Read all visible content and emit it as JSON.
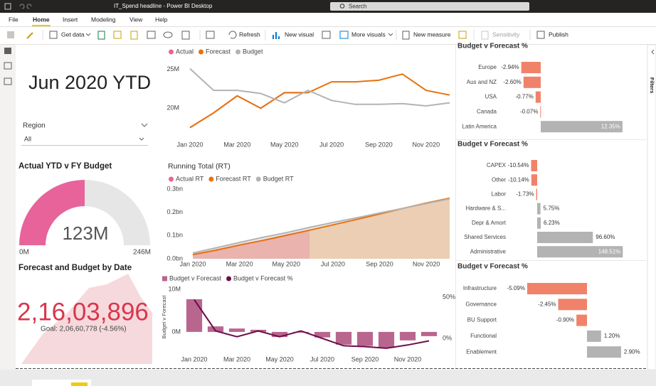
{
  "window": {
    "title": "IT_Spend headline - Power BI Desktop",
    "search": "Search"
  },
  "menu": [
    "File",
    "Home",
    "Insert",
    "Modeling",
    "View",
    "Help"
  ],
  "ribbon": [
    "Get data",
    "Refresh",
    "New visual",
    "More visuals",
    "New measure",
    "Sensitivity",
    "Publish"
  ],
  "filters_pane": "Filters",
  "report": {
    "heading": "Jun 2020 YTD",
    "slicer": {
      "label": "Region",
      "value": "All"
    }
  },
  "chart_data": [
    {
      "type": "gauge",
      "title": "Actual YTD v FY Budget",
      "value": 123,
      "value_label": "123M",
      "min": 0,
      "min_label": "0M",
      "max": 246,
      "max_label": "246M",
      "color": "#E8639A",
      "track_color": "#E6E6E6"
    },
    {
      "type": "kpi",
      "title": "Forecast and Budget by Date",
      "value": "2,16,03,896",
      "goal": "Goal: 2,06,60,778 (-4.56%)",
      "color": "#D9364D"
    },
    {
      "type": "line",
      "categories": [
        "Jan 2020",
        null,
        "Mar 2020",
        null,
        "May 2020",
        null,
        "Jul 2020",
        null,
        "Sep 2020",
        null,
        "Nov 2020",
        null
      ],
      "series": [
        {
          "name": "Actual",
          "color": "#E8639A",
          "values": [
            17.5,
            19.4,
            21.6,
            20.0,
            22.0,
            22.0,
            null,
            null,
            null,
            null,
            null,
            null
          ]
        },
        {
          "name": "Forecast",
          "color": "#E8720C",
          "values": [
            17.5,
            19.4,
            21.6,
            20.0,
            22.0,
            22.0,
            23.4,
            23.4,
            23.6,
            24.4,
            22.3,
            21.7
          ]
        },
        {
          "name": "Budget",
          "color": "#B3B3B3",
          "values": [
            25.1,
            22.3,
            22.3,
            21.9,
            20.7,
            22.3,
            21.0,
            20.5,
            20.5,
            20.6,
            20.3,
            20.7
          ]
        }
      ],
      "ylim": [
        17,
        25.7
      ],
      "yticks": [
        {
          "value": 20,
          "label": "20M"
        },
        {
          "value": 25,
          "label": "25M"
        }
      ],
      "grid": false
    },
    {
      "type": "area",
      "title": "Running Total (RT)",
      "categories": [
        "Jan 2020",
        null,
        "Mar 2020",
        null,
        "May 2020",
        null,
        "Jul 2020",
        null,
        "Sep 2020",
        null,
        "Nov 2020",
        null
      ],
      "series": [
        {
          "name": "Actual RT",
          "color": "#E8639A",
          "values": [
            0.018,
            0.037,
            0.059,
            0.079,
            0.101,
            0.123,
            null,
            null,
            null,
            null,
            null,
            null
          ]
        },
        {
          "name": "Forecast RT",
          "color": "#E8720C",
          "values": [
            0.018,
            0.037,
            0.059,
            0.079,
            0.101,
            0.123,
            0.146,
            0.169,
            0.193,
            0.217,
            0.24,
            0.261
          ]
        },
        {
          "name": "Budget RT",
          "color": "#B3B3B3",
          "values": [
            0.025,
            0.047,
            0.07,
            0.092,
            0.112,
            0.135,
            0.156,
            0.176,
            0.197,
            0.217,
            0.238,
            0.258
          ]
        }
      ],
      "ylim": [
        0,
        0.3
      ],
      "yticks": [
        {
          "value": 0,
          "label": "0.0bn"
        },
        {
          "value": 0.1,
          "label": "0.1bn"
        },
        {
          "value": 0.2,
          "label": "0.2bn"
        },
        {
          "value": 0.3,
          "label": "0.3bn"
        }
      ],
      "grid": false
    },
    {
      "type": "combo",
      "y_label": "Budget v Forecast",
      "categories": [
        "Jan 2020",
        null,
        "Mar 2020",
        null,
        "May 2020",
        null,
        "Jul 2020",
        null,
        "Sep 2020",
        null,
        "Nov 2020",
        null
      ],
      "series": [
        {
          "name": "Budget v Forecast",
          "mark": "bar",
          "color": "#B9668F",
          "values": [
            7.7,
            1.3,
            0.8,
            0.5,
            -1.2,
            -0.2,
            -1.3,
            -3.0,
            -3.3,
            -3.8,
            -2.0,
            -1.0
          ]
        },
        {
          "name": "Budget v Forecast %",
          "mark": "line",
          "axis": "y2",
          "color": "#6B0F4A",
          "values": [
            47,
            9,
            2,
            9,
            2,
            9,
            0,
            -9,
            -10,
            -12,
            -8,
            -3
          ]
        }
      ],
      "ylim": [
        -4.2,
        11.2
      ],
      "yticks": [
        {
          "value": 0,
          "label": "0M"
        },
        {
          "value": 10,
          "label": "10M"
        }
      ],
      "y2lim": [
        -13.8,
        65.5
      ],
      "y2ticks": [
        {
          "value": 0,
          "label": "0%"
        },
        {
          "value": 50,
          "label": "50%"
        }
      ],
      "grid": false
    },
    {
      "type": "hbar",
      "title": "Budget v Forecast %",
      "categories": [
        "Europe",
        "Aus and NZ",
        "USA",
        "Canada",
        "Latin America"
      ],
      "values": [
        -2.94,
        -2.6,
        -0.77,
        -0.07,
        12.35
      ],
      "value_labels": [
        "-2.94%",
        "-2.60%",
        "-0.77%",
        "-0.07%",
        "12.35%"
      ],
      "xlim": [
        -3.76,
        12.9
      ],
      "negative_color": "#F0826A",
      "positive_color": "#B3B3B3"
    },
    {
      "type": "hbar",
      "title": "Budget v Forecast %",
      "categories": [
        "CAPEX",
        "Other",
        "Labor",
        "Hardware & S...",
        "Depr & Amort",
        "Shared Services",
        "Administrative"
      ],
      "values": [
        -10.54,
        -10.14,
        -1.73,
        5.75,
        6.23,
        96.6,
        148.51
      ],
      "value_labels": [
        "-10.54%",
        "-10.14%",
        "-1.73%",
        "5.75%",
        "6.23%",
        "96.60%",
        "148.51%"
      ],
      "xlim": [
        -18.5,
        154.3
      ],
      "negative_color": "#F0826A",
      "positive_color": "#B3B3B3"
    },
    {
      "type": "hbar",
      "title": "Budget v Forecast %",
      "categories": [
        "Infrastructure",
        "Governance",
        "BU Support",
        "Functional",
        "Enablement"
      ],
      "values": [
        -5.09,
        -2.45,
        -0.9,
        1.2,
        2.9
      ],
      "value_labels": [
        "-5.09%",
        "-2.45%",
        "-0.90%",
        "1.20%",
        "2.90%"
      ],
      "xlim": [
        -5.45,
        3.33
      ],
      "negative_color": "#F0826A",
      "positive_color": "#B3B3B3"
    }
  ]
}
